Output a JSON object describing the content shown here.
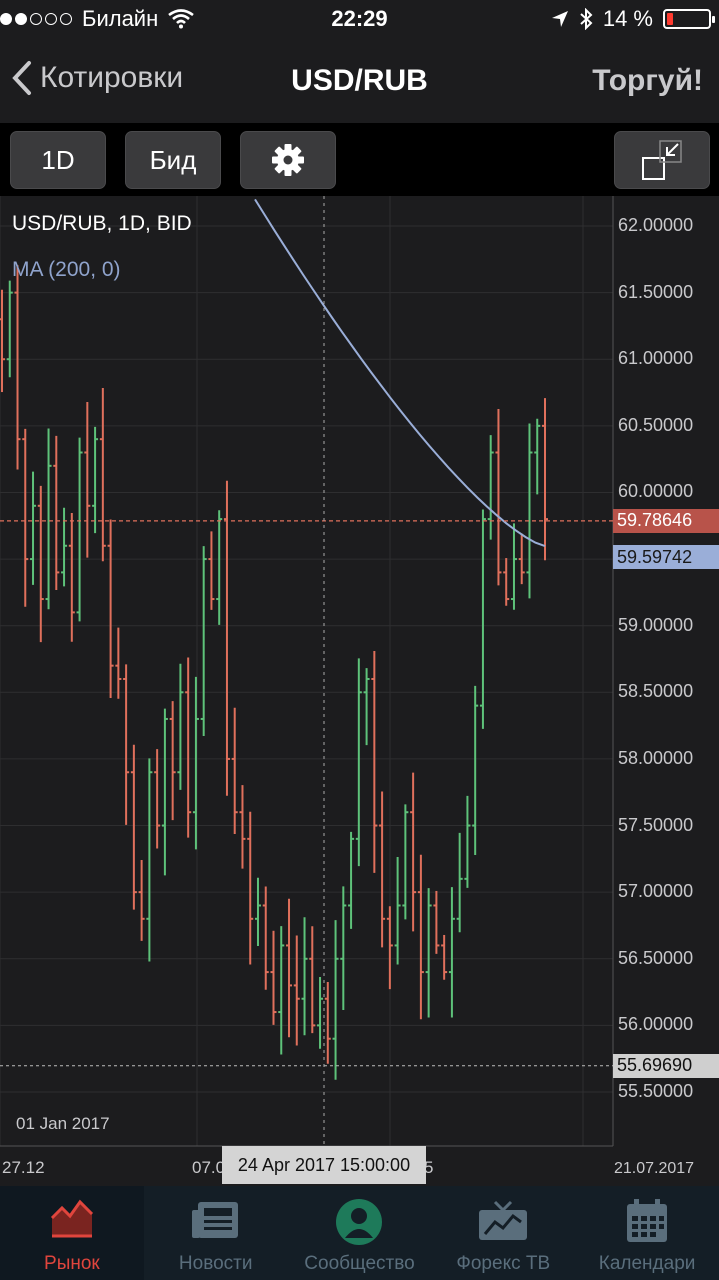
{
  "status_bar": {
    "carrier": "Билайн",
    "time": "22:29",
    "battery": "14 %",
    "battery_level": 0.14,
    "signal_bars_filled": 2,
    "signal_bars_total": 5
  },
  "nav": {
    "back_label": "Котировки",
    "title": "USD/RUB",
    "action_label": "Торгуй!"
  },
  "toolbar": {
    "timeframe": "1D",
    "price_type": "Бид",
    "settings_icon": "gear-icon",
    "fullscreen_icon": "collapse-expand-icon"
  },
  "chart": {
    "title": "USD/RUB, 1D, BID",
    "indicator": "MA (200, 0)",
    "last_price": "59.78646",
    "ma_value": "59.59742",
    "low_price": "55.69690",
    "crosshair_date": "24 Apr 2017 15:00:00",
    "inner_date_label": "01 Jan 2017",
    "x_labels": [
      "27.12",
      "07.0",
      "5",
      "21.07.2017"
    ],
    "y_ticks": [
      "62.00000",
      "61.50000",
      "61.00000",
      "60.50000",
      "60.00000",
      "59.50000",
      "59.00000",
      "58.50000",
      "58.00000",
      "57.50000",
      "57.00000",
      "56.50000",
      "56.00000",
      "55.50000"
    ],
    "colors": {
      "up": "#5ec27a",
      "down": "#e0705c",
      "ma": "#9aaed8",
      "background": "#1c1c1e",
      "grid": "#2e2e30"
    }
  },
  "chart_data": {
    "type": "ohlc",
    "title": "USD/RUB, 1D, BID",
    "ylim": [
      55.3,
      62.2
    ],
    "x_start": "27.12",
    "x_end": "21.07.2017",
    "closes": [
      61.0,
      61.5,
      60.4,
      59.5,
      59.9,
      59.2,
      60.2,
      59.4,
      59.6,
      59.1,
      60.3,
      59.9,
      60.4,
      59.6,
      58.7,
      58.6,
      57.9,
      57.0,
      56.8,
      57.9,
      57.5,
      58.3,
      57.9,
      58.5,
      57.6,
      58.3,
      59.5,
      59.2,
      59.8,
      58.0,
      57.6,
      57.4,
      56.8,
      56.9,
      56.4,
      56.1,
      56.6,
      56.3,
      56.2,
      56.5,
      56.0,
      56.2,
      55.9,
      56.5,
      56.9,
      57.4,
      58.5,
      58.6,
      57.5,
      56.8,
      56.6,
      56.9,
      57.6,
      57.0,
      56.4,
      56.9,
      56.6,
      56.4,
      56.8,
      57.1,
      57.5,
      58.4,
      59.8,
      60.3,
      59.4,
      59.2,
      59.5,
      59.4,
      60.3,
      60.5,
      59.8
    ],
    "ma_200": {
      "start": 62.2,
      "end": 59.59742
    },
    "last": 59.78646,
    "low": 55.6969
  }
}
